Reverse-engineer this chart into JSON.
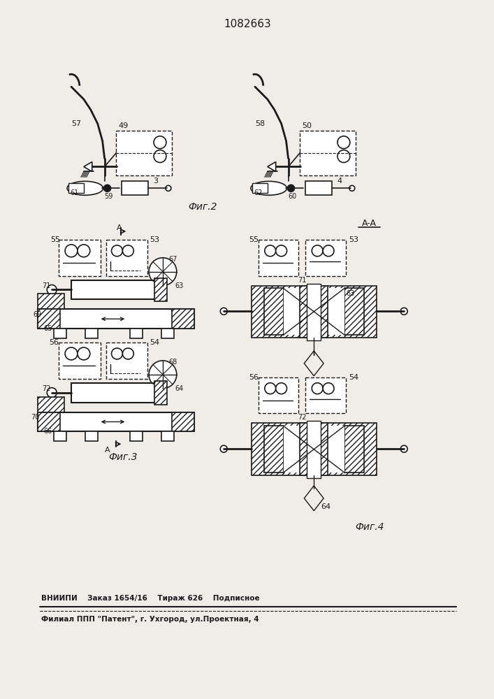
{
  "title": "1082663",
  "bg_color": "#f0ede8",
  "line_color": "#1a1a1a",
  "footer_line1": "ВНИИПИ    Заказ 1654/16    Тираж 626    Подписное",
  "footer_line2": "Филиал ППП \"Патент\", г. Ухгород, ул.Проектная, 4",
  "fig2_label": "Фиг.2",
  "fig3_label": "Фиг.3",
  "fig4_label": "Фиг.4"
}
